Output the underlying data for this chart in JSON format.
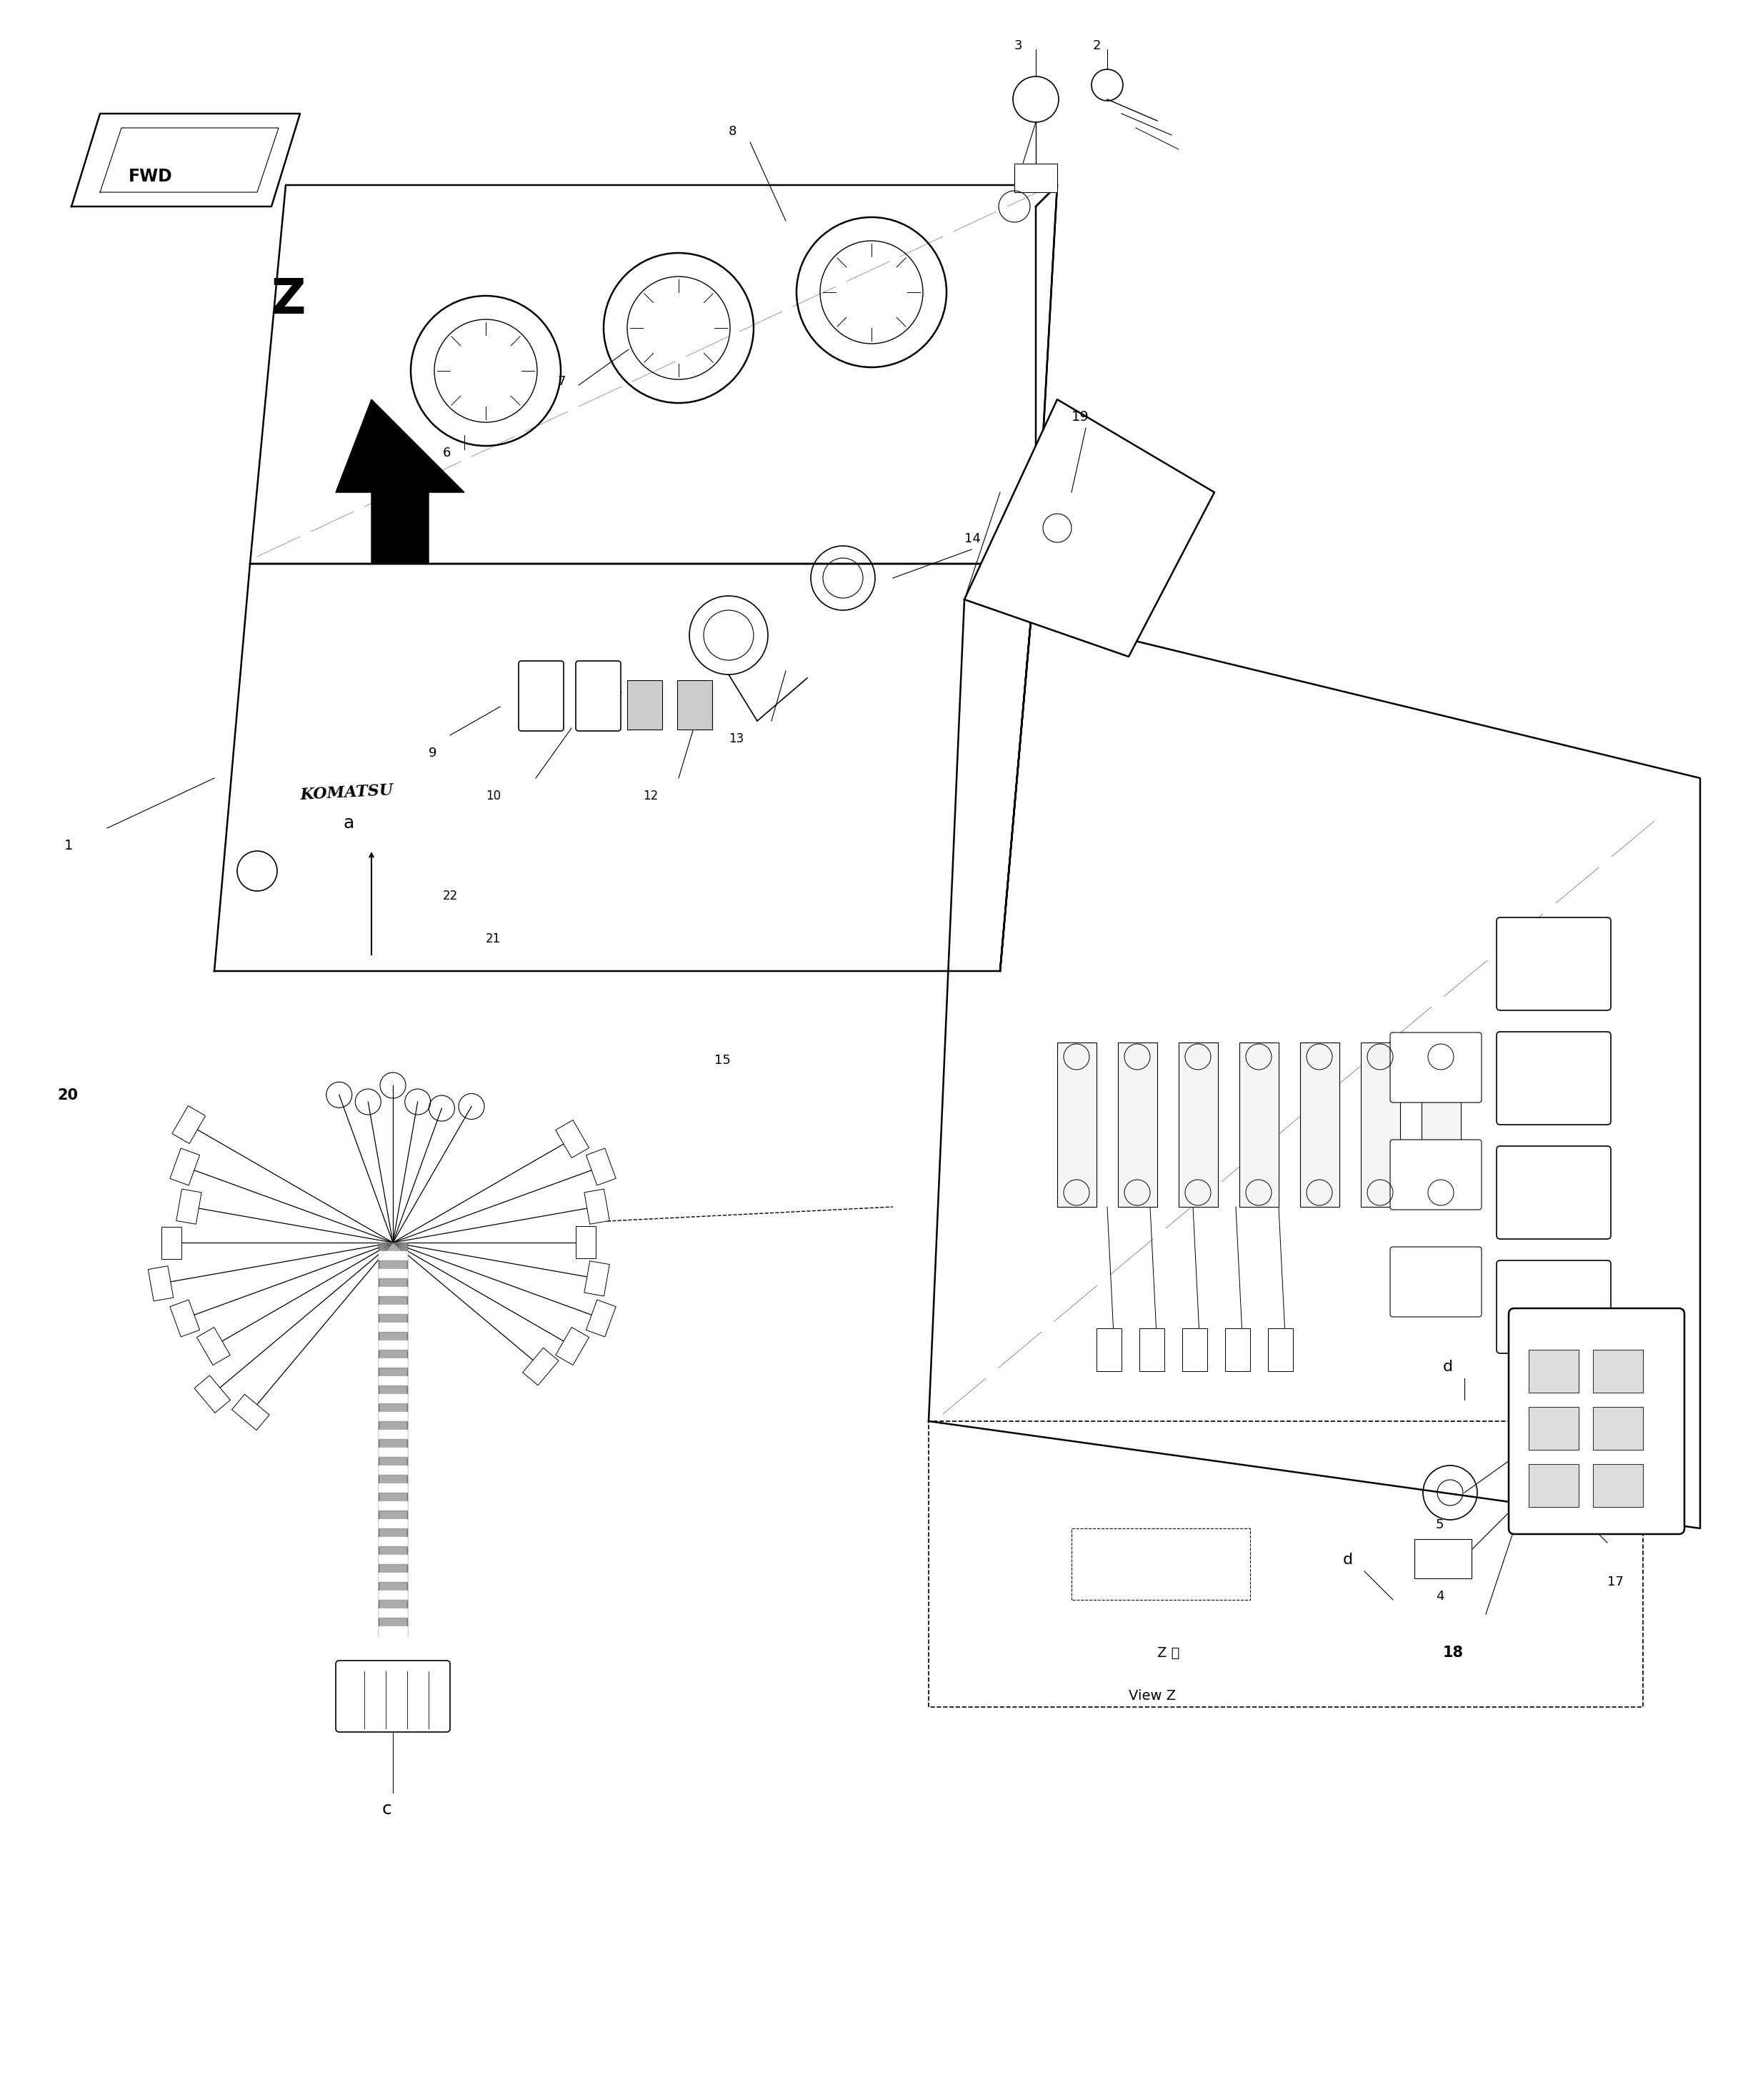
{
  "background_color": "#ffffff",
  "fig_width": 24.61,
  "fig_height": 29.39,
  "labels": {
    "fwd_box": "FWD",
    "z_label": "Z",
    "view_z_jp": "Z 視",
    "view_z_en": "View Z",
    "a_label": "a",
    "c_label": "c",
    "d_label": "d",
    "komatsu": "KOMATSU"
  }
}
